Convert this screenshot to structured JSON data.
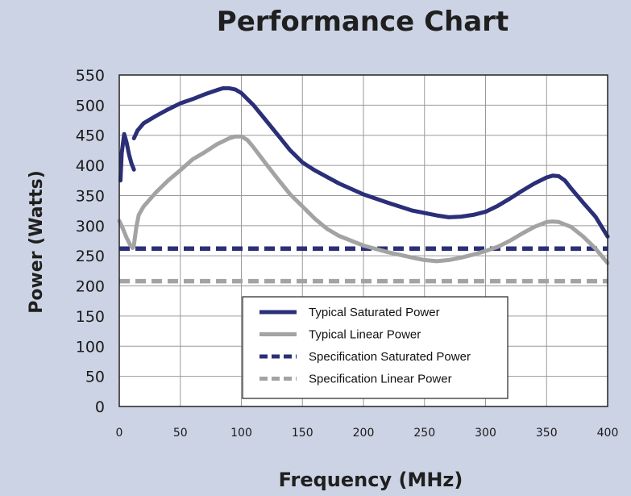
{
  "chart_data": {
    "type": "line",
    "title": "Performance Chart",
    "xlabel": "Frequency (MHz)",
    "ylabel": "Power (Watts)",
    "xlim": [
      0,
      400
    ],
    "ylim": [
      0,
      550
    ],
    "xticks": [
      0,
      50,
      100,
      150,
      200,
      250,
      300,
      350,
      400
    ],
    "yticks": [
      0,
      50,
      100,
      150,
      200,
      250,
      300,
      350,
      400,
      450,
      500,
      550
    ],
    "grid": true,
    "legend_position": "bottom-center",
    "series": [
      {
        "name": "Typical Saturated Power",
        "color": "#2b2f78",
        "dash": "solid",
        "segments": [
          {
            "x": [
              1,
              2,
              4,
              6,
              8,
              10,
              12
            ],
            "y": [
              375,
              420,
              452,
              438,
              418,
              403,
              393
            ]
          },
          {
            "x": [
              12,
              15,
              20,
              30,
              40,
              50,
              60,
              70,
              80,
              85,
              90,
              95,
              100,
              110,
              120,
              130,
              140,
              150,
              160,
              180,
              200,
              220,
              240,
              260,
              270,
              280,
              290,
              300,
              310,
              320,
              330,
              340,
              350,
              355,
              360,
              365,
              370,
              380,
              390,
              400
            ],
            "y": [
              445,
              458,
              470,
              482,
              493,
              503,
              510,
              518,
              525,
              528,
              528,
              526,
              520,
              500,
              475,
              450,
              425,
              405,
              392,
              370,
              352,
              338,
              325,
              317,
              314,
              315,
              318,
              323,
              333,
              345,
              358,
              370,
              380,
              383,
              382,
              375,
              362,
              338,
              315,
              282
            ]
          }
        ]
      },
      {
        "name": "Typical Linear Power",
        "color": "#a3a3a3",
        "dash": "solid",
        "segments": [
          {
            "x": [
              0,
              3,
              6,
              9,
              11,
              12,
              14,
              16,
              20,
              30,
              40,
              50,
              60,
              70,
              80,
              90,
              95,
              100,
              105,
              110,
              120,
              130,
              140,
              150,
              160,
              170,
              180,
              200,
              220,
              240,
              250,
              260,
              270,
              280,
              290,
              300,
              310,
              320,
              330,
              340,
              350,
              355,
              360,
              365,
              370,
              380,
              390,
              400
            ],
            "y": [
              308,
              295,
              280,
              268,
              263,
              268,
              298,
              318,
              332,
              355,
              375,
              392,
              410,
              422,
              435,
              445,
              448,
              448,
              442,
              430,
              403,
              377,
              352,
              332,
              312,
              295,
              283,
              267,
              256,
              247,
              243,
              241,
              243,
              247,
              252,
              258,
              265,
              275,
              287,
              298,
              306,
              307,
              306,
              302,
              298,
              282,
              262,
              238
            ]
          }
        ]
      },
      {
        "name": "Specification Saturated Power",
        "color": "#2b2f78",
        "dash": "dashed",
        "segments": [
          {
            "x": [
              0,
              400
            ],
            "y": [
              262,
              262
            ]
          }
        ]
      },
      {
        "name": "Specification Linear Power",
        "color": "#a3a3a3",
        "dash": "dashed",
        "segments": [
          {
            "x": [
              0,
              400
            ],
            "y": [
              208,
              208
            ]
          }
        ]
      }
    ]
  }
}
